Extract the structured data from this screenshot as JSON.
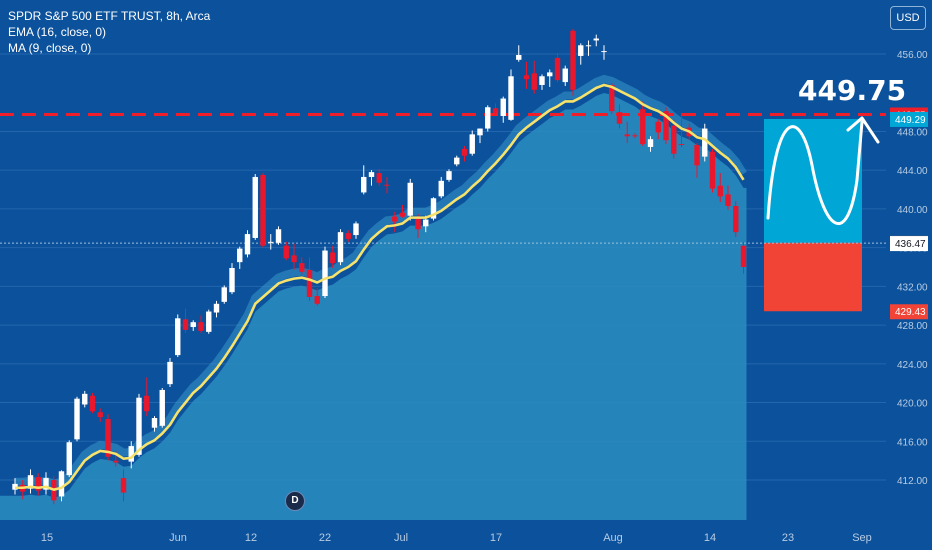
{
  "legend": {
    "line1": "SPDR S&P 500 ETF TRUST, 8h, Arca",
    "line2": "EMA (16, close, 0)",
    "line3": "MA (9, close, 0)"
  },
  "currency_button": "USD",
  "dividend_marker": "D",
  "colors": {
    "background": "#0b519b",
    "up": "#ffffff",
    "down": "#e8172e",
    "ema": "#f7e36b",
    "area_fill": "#2a8dbf",
    "target_box": "#00a6d6",
    "stop_box": "#f24436",
    "dashed_line": "#f01e28"
  },
  "chart_data": {
    "type": "candlestick",
    "ylim": [
      410,
      458
    ],
    "y_ticks": [
      412,
      416,
      420,
      424,
      428,
      432,
      436,
      440,
      444,
      448,
      456
    ],
    "x_tick_labels": [
      "15",
      "Jun",
      "12",
      "22",
      "Jul",
      "17",
      "Aug",
      "14",
      "23",
      "Sep"
    ],
    "price_labels": [
      {
        "value": 449.75,
        "label": "449.75",
        "color": "#f01e28",
        "text_color": "#ffffff"
      },
      {
        "value": 449.29,
        "label": "449.29",
        "color": "#00a6d6",
        "text_color": "#ffffff"
      },
      {
        "value": 436.5,
        "label": "436.50",
        "color": "#6b6b6b",
        "text_color": "#ffffff"
      },
      {
        "value": 436.47,
        "label": "436.47",
        "color": "#ffffff",
        "text_color": "#131722"
      },
      {
        "value": 429.43,
        "label": "429.43",
        "color": "#f24436",
        "text_color": "#ffffff"
      }
    ],
    "target_label": "449.75",
    "resistance_level": 449.75,
    "target_zone": [
      436.5,
      449.29
    ],
    "stop_zone": [
      429.43,
      436.5
    ],
    "candles": [
      {
        "o": 411,
        "h": 412.2,
        "l": 410.5,
        "c": 411.6
      },
      {
        "o": 411.5,
        "h": 412,
        "l": 410,
        "c": 410.8
      },
      {
        "o": 411.1,
        "h": 413.1,
        "l": 410.6,
        "c": 412.5
      },
      {
        "o": 412.3,
        "h": 412.7,
        "l": 410.4,
        "c": 410.9
      },
      {
        "o": 411,
        "h": 412.8,
        "l": 410.5,
        "c": 412.2
      },
      {
        "o": 412,
        "h": 412.4,
        "l": 409.5,
        "c": 409.9
      },
      {
        "o": 410.3,
        "h": 413,
        "l": 409.8,
        "c": 412.9
      },
      {
        "o": 412.5,
        "h": 416.1,
        "l": 412.3,
        "c": 415.9
      },
      {
        "o": 416.2,
        "h": 420.6,
        "l": 416,
        "c": 420.4
      },
      {
        "o": 419.8,
        "h": 421.2,
        "l": 419.5,
        "c": 420.9
      },
      {
        "o": 420.7,
        "h": 421,
        "l": 418.9,
        "c": 419.1
      },
      {
        "o": 419,
        "h": 419.4,
        "l": 418,
        "c": 418.5
      },
      {
        "o": 418.3,
        "h": 418.8,
        "l": 414,
        "c": 414.4
      },
      {
        "o": 414,
        "h": 415,
        "l": 413.4,
        "c": 413.8
      },
      {
        "o": 412.2,
        "h": 413.1,
        "l": 409.8,
        "c": 410.7
      },
      {
        "o": 413.9,
        "h": 416,
        "l": 413.2,
        "c": 415.5
      },
      {
        "o": 414.6,
        "h": 420.9,
        "l": 414.4,
        "c": 420.5
      },
      {
        "o": 420.7,
        "h": 422.6,
        "l": 418.6,
        "c": 419.1
      },
      {
        "o": 417.4,
        "h": 418.6,
        "l": 417,
        "c": 418.4
      },
      {
        "o": 417.6,
        "h": 421.5,
        "l": 417.4,
        "c": 421.3
      },
      {
        "o": 421.9,
        "h": 424.6,
        "l": 421.6,
        "c": 424.2
      },
      {
        "o": 424.9,
        "h": 429.1,
        "l": 424.7,
        "c": 428.7
      },
      {
        "o": 428.6,
        "h": 429.7,
        "l": 427.2,
        "c": 427.5
      },
      {
        "o": 427.8,
        "h": 428.5,
        "l": 427.4,
        "c": 428.3
      },
      {
        "o": 428.3,
        "h": 429,
        "l": 427.2,
        "c": 427.4
      },
      {
        "o": 427.3,
        "h": 429.6,
        "l": 427.1,
        "c": 429.4
      },
      {
        "o": 429.3,
        "h": 430.5,
        "l": 428.8,
        "c": 430.2
      },
      {
        "o": 430.4,
        "h": 432.1,
        "l": 430.2,
        "c": 431.9
      },
      {
        "o": 431.4,
        "h": 434.4,
        "l": 431.2,
        "c": 433.9
      },
      {
        "o": 434.5,
        "h": 436.1,
        "l": 433.8,
        "c": 435.9
      },
      {
        "o": 435.3,
        "h": 437.8,
        "l": 435,
        "c": 437.4
      },
      {
        "o": 437,
        "h": 443.6,
        "l": 436.8,
        "c": 443.3
      },
      {
        "o": 443.5,
        "h": 443.7,
        "l": 436,
        "c": 436.2
      },
      {
        "o": 436.5,
        "h": 437.4,
        "l": 435.8,
        "c": 436.6
      },
      {
        "o": 436.5,
        "h": 438.2,
        "l": 436.3,
        "c": 437.9
      },
      {
        "o": 436.2,
        "h": 436.6,
        "l": 434.7,
        "c": 434.9
      },
      {
        "o": 435.2,
        "h": 436.4,
        "l": 433.7,
        "c": 434.5
      },
      {
        "o": 434.4,
        "h": 435,
        "l": 433.2,
        "c": 433.5
      },
      {
        "o": 433.7,
        "h": 435,
        "l": 430.5,
        "c": 430.9
      },
      {
        "o": 431,
        "h": 431.8,
        "l": 430,
        "c": 430.2
      },
      {
        "o": 431,
        "h": 436.1,
        "l": 430.8,
        "c": 435.7
      },
      {
        "o": 435.5,
        "h": 436.2,
        "l": 433.9,
        "c": 434.4
      },
      {
        "o": 434.5,
        "h": 437.9,
        "l": 434.2,
        "c": 437.6
      },
      {
        "o": 437.5,
        "h": 437.8,
        "l": 436.6,
        "c": 436.9
      },
      {
        "o": 437.3,
        "h": 438.7,
        "l": 436.9,
        "c": 438.5
      },
      {
        "o": 441.7,
        "h": 444.5,
        "l": 441.5,
        "c": 443.3
      },
      {
        "o": 443.3,
        "h": 444,
        "l": 442.4,
        "c": 443.8
      },
      {
        "o": 443.7,
        "h": 444.1,
        "l": 442.4,
        "c": 442.7
      },
      {
        "o": 442.5,
        "h": 443.3,
        "l": 441.6,
        "c": 442.4
      },
      {
        "o": 439.2,
        "h": 439.7,
        "l": 437.6,
        "c": 438.7
      },
      {
        "o": 439.6,
        "h": 440.4,
        "l": 439.1,
        "c": 439.2
      },
      {
        "o": 439.3,
        "h": 443.1,
        "l": 438.8,
        "c": 442.7
      },
      {
        "o": 439.2,
        "h": 439.5,
        "l": 437,
        "c": 437.9
      },
      {
        "o": 438.2,
        "h": 439.3,
        "l": 437.6,
        "c": 438.9
      },
      {
        "o": 439,
        "h": 441.2,
        "l": 438.8,
        "c": 441.1
      },
      {
        "o": 441.3,
        "h": 443.3,
        "l": 441.1,
        "c": 442.9
      },
      {
        "o": 443,
        "h": 444.1,
        "l": 442.8,
        "c": 443.9
      },
      {
        "o": 444.6,
        "h": 445.5,
        "l": 444.4,
        "c": 445.3
      },
      {
        "o": 446.2,
        "h": 446.5,
        "l": 444.9,
        "c": 445.5
      },
      {
        "o": 445.7,
        "h": 448.1,
        "l": 445.5,
        "c": 447.7
      },
      {
        "o": 447.6,
        "h": 448.3,
        "l": 446.8,
        "c": 448.3
      },
      {
        "o": 448.3,
        "h": 450.7,
        "l": 448,
        "c": 450.5
      },
      {
        "o": 450.4,
        "h": 450.9,
        "l": 449.7,
        "c": 449.9
      },
      {
        "o": 449.6,
        "h": 451.6,
        "l": 448.9,
        "c": 451.4
      },
      {
        "o": 449.2,
        "h": 454.4,
        "l": 449.1,
        "c": 453.7
      },
      {
        "o": 455.4,
        "h": 456.9,
        "l": 455.2,
        "c": 455.9
      },
      {
        "o": 453.8,
        "h": 455.2,
        "l": 452.4,
        "c": 453.4
      },
      {
        "o": 454,
        "h": 455.3,
        "l": 451.9,
        "c": 452.3
      },
      {
        "o": 452.8,
        "h": 453.9,
        "l": 452.3,
        "c": 453.7
      },
      {
        "o": 453.7,
        "h": 454.4,
        "l": 452.6,
        "c": 454.1
      },
      {
        "o": 455.6,
        "h": 456.1,
        "l": 453.1,
        "c": 453.3
      },
      {
        "o": 453.1,
        "h": 454.8,
        "l": 452.7,
        "c": 454.5
      },
      {
        "o": 458.4,
        "h": 458.6,
        "l": 451.7,
        "c": 452.3
      },
      {
        "o": 455.8,
        "h": 457.1,
        "l": 454.9,
        "c": 456.9
      },
      {
        "o": 456.8,
        "h": 457.4,
        "l": 455.8,
        "c": 456.9
      },
      {
        "o": 457.4,
        "h": 458,
        "l": 456.8,
        "c": 457.6
      },
      {
        "o": 456.3,
        "h": 456.9,
        "l": 455.4,
        "c": 456.3
      },
      {
        "o": 452.8,
        "h": 453,
        "l": 449.8,
        "c": 450.1
      },
      {
        "o": 450,
        "h": 450.8,
        "l": 448.3,
        "c": 448.8
      },
      {
        "o": 447.7,
        "h": 449,
        "l": 446.8,
        "c": 447.5
      },
      {
        "o": 447.6,
        "h": 447.8,
        "l": 447.3,
        "c": 447.5
      },
      {
        "o": 450.3,
        "h": 451.1,
        "l": 446.5,
        "c": 446.7
      },
      {
        "o": 446.4,
        "h": 447.5,
        "l": 445.9,
        "c": 447.2
      },
      {
        "o": 449,
        "h": 449.3,
        "l": 447.2,
        "c": 447.9
      },
      {
        "o": 450.1,
        "h": 450.5,
        "l": 446.7,
        "c": 447.1
      },
      {
        "o": 448.6,
        "h": 449.2,
        "l": 445.2,
        "c": 445.7
      },
      {
        "o": 446.7,
        "h": 449.9,
        "l": 446.4,
        "c": 446.6
      },
      {
        "o": 448.4,
        "h": 448.8,
        "l": 447.1,
        "c": 447.5
      },
      {
        "o": 446.6,
        "h": 446.8,
        "l": 443.2,
        "c": 444.5
      },
      {
        "o": 445.4,
        "h": 448.8,
        "l": 444.9,
        "c": 448.3
      },
      {
        "o": 445.9,
        "h": 446.2,
        "l": 441.7,
        "c": 442.1
      },
      {
        "o": 442.4,
        "h": 443.7,
        "l": 440.7,
        "c": 441.3
      },
      {
        "o": 441.5,
        "h": 442.4,
        "l": 439.9,
        "c": 440.3
      },
      {
        "o": 440.3,
        "h": 440.8,
        "l": 437.1,
        "c": 437.6
      },
      {
        "o": 436.2,
        "h": 436.6,
        "l": 433.3,
        "c": 434
      }
    ],
    "ema_16": [
      411.2,
      411.2,
      411.3,
      411.2,
      411.3,
      411.0,
      411.2,
      411.8,
      412.9,
      414.0,
      414.6,
      415.0,
      414.9,
      414.7,
      414.2,
      414.3,
      415.1,
      415.7,
      416.1,
      416.8,
      417.7,
      419.0,
      420.0,
      421.0,
      421.7,
      422.6,
      423.5,
      424.6,
      425.8,
      427.1,
      428.4,
      430.2,
      430.9,
      431.6,
      432.3,
      432.6,
      432.8,
      432.9,
      432.7,
      432.4,
      432.8,
      433.0,
      433.6,
      434.0,
      434.6,
      435.8,
      436.9,
      437.6,
      438.2,
      438.3,
      438.5,
      439.1,
      439.1,
      439.1,
      439.4,
      439.8,
      440.4,
      441.0,
      441.5,
      442.3,
      443.0,
      443.9,
      444.7,
      445.6,
      446.6,
      447.7,
      448.4,
      449.0,
      449.6,
      450.2,
      450.6,
      451.1,
      451.1,
      451.5,
      452.0,
      452.5,
      452.8,
      452.6,
      452.2,
      451.8,
      451.4,
      450.8,
      450.4,
      450.1,
      449.6,
      448.9,
      448.3,
      448.0,
      447.4,
      447.2,
      446.5,
      445.8,
      445.2,
      444.3,
      443.0
    ]
  }
}
